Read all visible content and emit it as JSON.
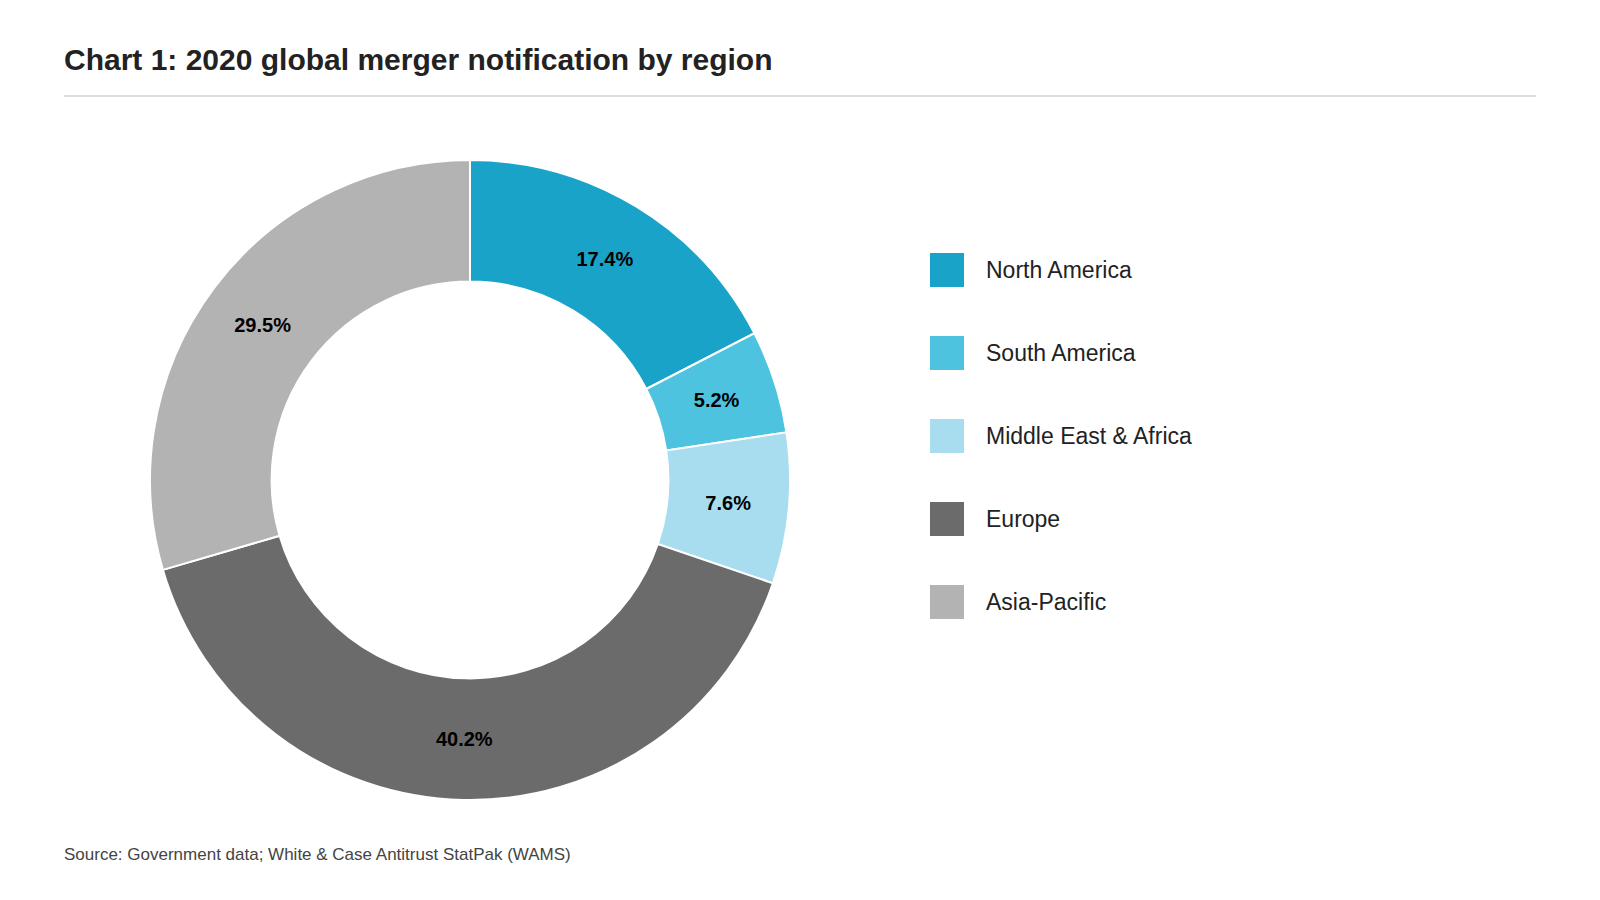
{
  "chart_data": {
    "type": "donut",
    "title": "Chart 1: 2020 global merger notification by region",
    "annotations": [
      "Source: Government data; White & Case Antitrust StatPak (WAMS)"
    ],
    "categories": [
      "North America",
      "South America",
      "Middle East & Africa",
      "Europe",
      "Asia-Pacific"
    ],
    "values": [
      17.4,
      5.2,
      7.6,
      40.2,
      29.5
    ],
    "value_labels": [
      "17.4%",
      "5.2%",
      "7.6%",
      "40.2%",
      "29.5%"
    ],
    "colors": [
      "#1aa3c8",
      "#4dc3e0",
      "#a8ddf0",
      "#6b6b6b",
      "#b3b3b3"
    ],
    "data_labels": true,
    "legend": "right"
  }
}
